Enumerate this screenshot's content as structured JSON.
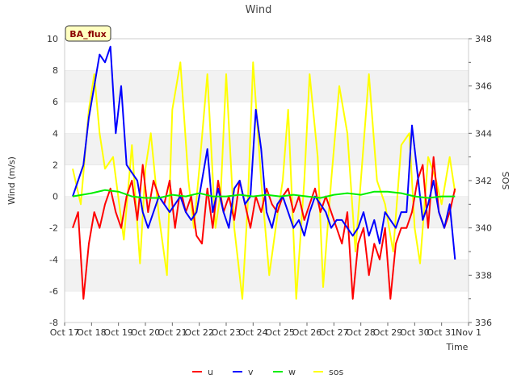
{
  "chart_data": {
    "type": "line",
    "title": "Wind",
    "badge": "BA_flux",
    "xlabel": "Time",
    "ylabel_left": "Wind (m/s)",
    "ylabel_right": "SOS",
    "xlim": [
      0,
      15
    ],
    "ylim_left": [
      -8,
      10
    ],
    "ylim_right": [
      336,
      348
    ],
    "x_ticks": [
      {
        "x": 0,
        "label": "Oct 17"
      },
      {
        "x": 1,
        "label": "Oct 18"
      },
      {
        "x": 2,
        "label": "Oct 19"
      },
      {
        "x": 3,
        "label": "Oct 20"
      },
      {
        "x": 4,
        "label": "Oct 21"
      },
      {
        "x": 5,
        "label": "Oct 22"
      },
      {
        "x": 6,
        "label": "Oct 23"
      },
      {
        "x": 7,
        "label": "Oct 24"
      },
      {
        "x": 8,
        "label": "Oct 25"
      },
      {
        "x": 9,
        "label": "Oct 26"
      },
      {
        "x": 10,
        "label": "Oct 27"
      },
      {
        "x": 11,
        "label": "Oct 28"
      },
      {
        "x": 12,
        "label": "Oct 29"
      },
      {
        "x": 13,
        "label": "Oct 30"
      },
      {
        "x": 14,
        "label": "Oct 31"
      },
      {
        "x": 15,
        "label": "Nov 1"
      }
    ],
    "y_ticks_left": [
      "-8",
      "-6",
      "-4",
      "-2",
      "0",
      "2",
      "4",
      "6",
      "8",
      "10"
    ],
    "y_ticks_right": [
      "336",
      "338",
      "340",
      "342",
      "344",
      "346",
      "348"
    ],
    "grid": "horizontal bands",
    "legend_position": "bottom",
    "series": [
      {
        "name": "u",
        "color": "#ff0000",
        "axis": "left",
        "x": [
          0.3,
          0.5,
          0.7,
          0.9,
          1.1,
          1.3,
          1.5,
          1.7,
          1.9,
          2.1,
          2.3,
          2.5,
          2.7,
          2.9,
          3.1,
          3.3,
          3.5,
          3.7,
          3.9,
          4.1,
          4.3,
          4.5,
          4.7,
          4.9,
          5.1,
          5.3,
          5.5,
          5.7,
          5.9,
          6.1,
          6.3,
          6.5,
          6.7,
          6.9,
          7.1,
          7.3,
          7.5,
          7.7,
          7.9,
          8.1,
          8.3,
          8.5,
          8.7,
          8.9,
          9.1,
          9.3,
          9.5,
          9.7,
          9.9,
          10.1,
          10.3,
          10.5,
          10.7,
          10.9,
          11.1,
          11.3,
          11.5,
          11.7,
          11.9,
          12.1,
          12.3,
          12.5,
          12.7,
          12.9,
          13.1,
          13.3,
          13.5,
          13.7,
          13.9,
          14.1,
          14.3,
          14.5
        ],
        "values": [
          -2,
          -1,
          -6.5,
          -3,
          -1,
          -2,
          -0.5,
          0.5,
          -1,
          -2,
          0,
          1,
          -1.5,
          2,
          -1,
          1,
          0,
          -0.5,
          1,
          -2,
          0.5,
          -1,
          0,
          -2.5,
          -3,
          0.5,
          -2,
          1,
          -1,
          0,
          -1.5,
          1,
          -0.5,
          -2,
          0,
          -1,
          0.5,
          -0.5,
          -1,
          0,
          0.5,
          -1,
          0,
          -1.5,
          -0.5,
          0.5,
          -1,
          0,
          -1,
          -2,
          -3,
          -1,
          -6.5,
          -3,
          -2,
          -5,
          -3,
          -4,
          -2,
          -6.5,
          -3,
          -2,
          -2,
          -1,
          1,
          2,
          -2,
          2.5,
          -1,
          -2,
          -1,
          0.5
        ]
      },
      {
        "name": "v",
        "color": "#0000ff",
        "axis": "left",
        "x": [
          0.3,
          0.5,
          0.7,
          0.9,
          1.1,
          1.3,
          1.5,
          1.7,
          1.9,
          2.1,
          2.3,
          2.5,
          2.7,
          2.9,
          3.1,
          3.3,
          3.5,
          3.7,
          3.9,
          4.1,
          4.3,
          4.5,
          4.7,
          4.9,
          5.1,
          5.3,
          5.5,
          5.7,
          5.9,
          6.1,
          6.3,
          6.5,
          6.7,
          6.9,
          7.1,
          7.3,
          7.5,
          7.7,
          7.9,
          8.1,
          8.3,
          8.5,
          8.7,
          8.9,
          9.1,
          9.3,
          9.5,
          9.7,
          9.9,
          10.1,
          10.3,
          10.5,
          10.7,
          10.9,
          11.1,
          11.3,
          11.5,
          11.7,
          11.9,
          12.1,
          12.3,
          12.5,
          12.7,
          12.9,
          13.1,
          13.3,
          13.5,
          13.7,
          13.9,
          14.1,
          14.3,
          14.5
        ],
        "values": [
          0,
          1,
          2,
          5,
          7,
          9,
          8.5,
          9.5,
          4,
          7,
          2,
          1.5,
          1,
          -1,
          -2,
          -1,
          0,
          -0.5,
          -1,
          -0.5,
          0,
          -1,
          -1.5,
          -1,
          1,
          3,
          -1,
          0.5,
          -1,
          -2,
          0.5,
          1,
          -0.5,
          0,
          5.5,
          3,
          -1,
          -2,
          -0.5,
          0,
          -1,
          -2,
          -1.5,
          -2.5,
          -1,
          0,
          -0.5,
          -1,
          -2,
          -1.5,
          -1.5,
          -2,
          -2.5,
          -2,
          -1,
          -2.5,
          -1.5,
          -3,
          -1,
          -1.5,
          -2,
          -1,
          -1,
          4.5,
          1.5,
          -1.5,
          -0.5,
          1,
          -1,
          -2,
          -0.5,
          -4
        ]
      },
      {
        "name": "w",
        "color": "#00ee00",
        "axis": "left",
        "x": [
          0.3,
          1.0,
          1.5,
          2.0,
          2.5,
          3.0,
          3.5,
          4.0,
          4.5,
          5.0,
          5.5,
          6.0,
          6.5,
          7.0,
          7.5,
          8.0,
          8.5,
          9.0,
          9.5,
          10.0,
          10.5,
          11.0,
          11.5,
          12.0,
          12.5,
          13.0,
          13.5,
          14.0,
          14.5
        ],
        "values": [
          0,
          0.2,
          0.4,
          0.3,
          0,
          -0.1,
          -0.1,
          0.1,
          0,
          0.2,
          0,
          0,
          0.1,
          0,
          0.1,
          0,
          0.1,
          0,
          -0.1,
          0.1,
          0.2,
          0.1,
          0.3,
          0.3,
          0.2,
          0,
          -0.1,
          0,
          0
        ]
      },
      {
        "name": "sos",
        "color": "#ffff00",
        "axis": "right",
        "x": [
          0.3,
          0.6,
          0.9,
          1.1,
          1.3,
          1.5,
          1.8,
          2.2,
          2.5,
          2.8,
          3.0,
          3.2,
          3.5,
          3.8,
          4.0,
          4.3,
          4.6,
          4.8,
          5.0,
          5.3,
          5.6,
          5.8,
          6.0,
          6.3,
          6.6,
          6.8,
          7.0,
          7.3,
          7.6,
          7.9,
          8.1,
          8.3,
          8.6,
          8.9,
          9.1,
          9.4,
          9.6,
          9.9,
          10.2,
          10.5,
          10.8,
          11.0,
          11.3,
          11.6,
          11.9,
          12.2,
          12.5,
          12.8,
          13.0,
          13.2,
          13.5,
          13.8,
          14.0,
          14.3,
          14.5
        ],
        "values": [
          342.5,
          341,
          345,
          346.5,
          344,
          342.5,
          343,
          339.5,
          343.5,
          338.5,
          342.5,
          344,
          340.5,
          338,
          345,
          347,
          342,
          340,
          342.5,
          346.5,
          340,
          341.5,
          346.5,
          340,
          337,
          341,
          347,
          342,
          338,
          340.5,
          342,
          345,
          337,
          342,
          346.5,
          343,
          337.5,
          342,
          346,
          344,
          339,
          342,
          346.5,
          342,
          341,
          339,
          343.5,
          344,
          340,
          338.5,
          343,
          342,
          341,
          343,
          341.5
        ]
      }
    ]
  }
}
